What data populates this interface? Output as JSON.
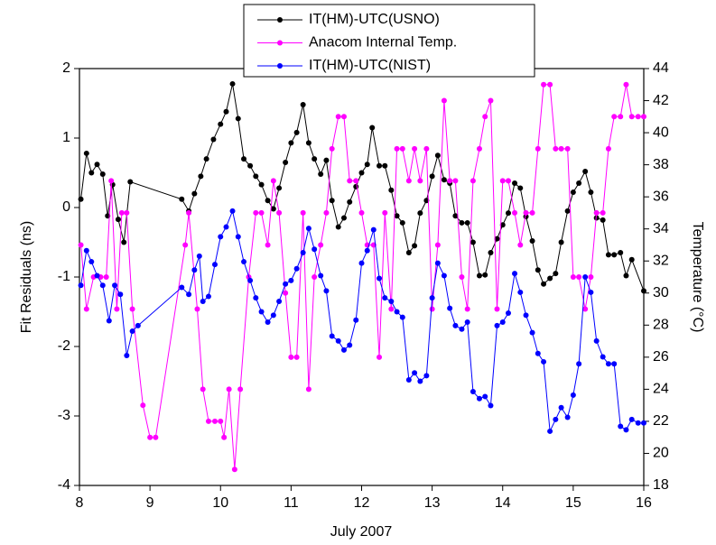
{
  "chart_data": {
    "type": "line",
    "xlabel": "July 2007",
    "ylabel": "Fit Residuals (ns)",
    "y2label": "Temperature (°C)",
    "xlim": [
      8,
      16
    ],
    "xticks": [
      8,
      9,
      10,
      11,
      12,
      13,
      14,
      15,
      16
    ],
    "ylim": [
      -4,
      2
    ],
    "yticks": [
      -4,
      -3,
      -2,
      -1,
      0,
      1,
      2
    ],
    "y2lim": [
      18,
      44
    ],
    "y2ticks": [
      18,
      20,
      22,
      24,
      26,
      28,
      30,
      32,
      34,
      36,
      38,
      40,
      42,
      44
    ],
    "legend": "top",
    "series": [
      {
        "name": "IT(HM)-UTC(USNO)",
        "color": "#000000",
        "x": [
          8.02,
          8.1,
          8.17,
          8.25,
          8.33,
          8.4,
          8.47,
          8.55,
          8.63,
          8.72,
          9.45,
          9.55,
          9.63,
          9.72,
          9.8,
          9.9,
          10.0,
          10.08,
          10.17,
          10.25,
          10.33,
          10.42,
          10.5,
          10.58,
          10.67,
          10.75,
          10.83,
          10.92,
          11.0,
          11.08,
          11.17,
          11.25,
          11.33,
          11.42,
          11.5,
          11.58,
          11.67,
          11.75,
          11.83,
          11.92,
          12.0,
          12.08,
          12.15,
          12.25,
          12.33,
          12.42,
          12.5,
          12.58,
          12.67,
          12.75,
          12.83,
          12.92,
          13.0,
          13.08,
          13.17,
          13.25,
          13.33,
          13.42,
          13.5,
          13.58,
          13.67,
          13.75,
          13.83,
          13.92,
          14.0,
          14.08,
          14.17,
          14.25,
          14.33,
          14.42,
          14.5,
          14.58,
          14.67,
          14.75,
          14.83,
          14.92,
          15.0,
          15.08,
          15.17,
          15.25,
          15.33,
          15.42,
          15.5,
          15.58,
          15.67,
          15.75,
          15.83,
          16.0
        ],
        "values": [
          0.12,
          0.78,
          0.5,
          0.62,
          0.48,
          -0.12,
          0.33,
          -0.17,
          -0.5,
          0.37,
          0.12,
          -0.05,
          0.2,
          0.45,
          0.7,
          0.98,
          1.2,
          1.38,
          1.78,
          1.28,
          0.7,
          0.6,
          0.45,
          0.33,
          0.1,
          -0.02,
          0.28,
          0.65,
          0.93,
          1.08,
          1.48,
          0.93,
          0.7,
          0.48,
          0.68,
          0.1,
          -0.28,
          -0.15,
          0.08,
          0.3,
          0.5,
          0.62,
          1.15,
          0.6,
          0.6,
          0.25,
          -0.12,
          -0.22,
          -0.65,
          -0.55,
          -0.08,
          0.1,
          0.45,
          0.75,
          0.4,
          0.35,
          -0.12,
          -0.22,
          -0.22,
          -0.5,
          -0.98,
          -0.97,
          -0.65,
          -0.45,
          -0.25,
          -0.08,
          0.35,
          0.28,
          -0.13,
          -0.48,
          -0.9,
          -1.1,
          -1.02,
          -0.95,
          -0.5,
          -0.05,
          0.22,
          0.35,
          0.52,
          0.22,
          -0.15,
          -0.18,
          -0.68,
          -0.68,
          -0.65,
          -0.98,
          -0.75,
          -1.2
        ]
      },
      {
        "name": "Anacom Internal Temp.",
        "color": "#ff00ff",
        "axis": "y2",
        "x": [
          8.02,
          8.1,
          8.2,
          8.3,
          8.38,
          8.45,
          8.53,
          8.6,
          8.67,
          8.75,
          8.9,
          9.0,
          9.08,
          9.5,
          9.55,
          9.67,
          9.75,
          9.83,
          9.92,
          10.0,
          10.05,
          10.12,
          10.2,
          10.28,
          10.4,
          10.5,
          10.58,
          10.67,
          10.75,
          10.83,
          10.92,
          11.0,
          11.08,
          11.17,
          11.25,
          11.33,
          11.42,
          11.5,
          11.58,
          11.67,
          11.75,
          11.83,
          11.92,
          12.0,
          12.08,
          12.17,
          12.25,
          12.33,
          12.42,
          12.5,
          12.58,
          12.67,
          12.75,
          12.83,
          12.92,
          13.0,
          13.08,
          13.17,
          13.25,
          13.33,
          13.42,
          13.5,
          13.58,
          13.67,
          13.75,
          13.83,
          13.92,
          14.0,
          14.08,
          14.17,
          14.25,
          14.33,
          14.42,
          14.5,
          14.58,
          14.67,
          14.75,
          14.83,
          14.92,
          15.0,
          15.08,
          15.17,
          15.25,
          15.33,
          15.42,
          15.5,
          15.58,
          15.67,
          15.75,
          15.83,
          15.92,
          16.0
        ],
        "values": [
          33,
          29,
          31,
          31,
          31,
          37,
          29,
          35,
          35,
          29,
          23,
          21,
          21,
          33,
          35,
          29,
          24,
          22,
          22,
          22,
          21,
          24,
          19,
          24,
          31,
          35,
          35,
          33,
          37,
          35,
          30,
          26,
          26,
          35,
          24,
          31,
          33,
          35,
          39,
          41,
          41,
          37,
          37,
          35,
          33,
          33,
          26,
          35,
          29,
          39,
          39,
          37,
          39,
          37,
          39,
          29,
          33,
          42,
          37,
          37,
          31,
          29,
          37,
          39,
          41,
          42,
          29,
          37,
          37,
          35,
          33,
          35,
          35,
          39,
          43,
          43,
          39,
          39,
          39,
          31,
          31,
          29,
          31,
          35,
          35,
          39,
          41,
          41,
          43,
          41,
          41,
          41
        ]
      },
      {
        "name": "IT(HM)-UTC(NIST)",
        "color": "#0000ff",
        "x": [
          8.02,
          8.1,
          8.17,
          8.25,
          8.33,
          8.42,
          8.5,
          8.58,
          8.67,
          8.75,
          8.83,
          9.45,
          9.55,
          9.63,
          9.7,
          9.75,
          9.83,
          9.92,
          10.0,
          10.08,
          10.17,
          10.25,
          10.33,
          10.42,
          10.5,
          10.58,
          10.67,
          10.75,
          10.83,
          10.92,
          11.0,
          11.08,
          11.17,
          11.25,
          11.33,
          11.42,
          11.5,
          11.58,
          11.67,
          11.75,
          11.83,
          11.92,
          12.0,
          12.08,
          12.17,
          12.25,
          12.33,
          12.42,
          12.5,
          12.58,
          12.67,
          12.75,
          12.83,
          12.92,
          13.0,
          13.08,
          13.17,
          13.25,
          13.33,
          13.42,
          13.5,
          13.58,
          13.67,
          13.75,
          13.83,
          13.92,
          14.0,
          14.08,
          14.17,
          14.25,
          14.33,
          14.42,
          14.5,
          14.58,
          14.67,
          14.75,
          14.83,
          14.92,
          15.0,
          15.08,
          15.17,
          15.25,
          15.33,
          15.42,
          15.5,
          15.58,
          15.67,
          15.75,
          15.83,
          15.92,
          16.0
        ],
        "values": [
          -1.12,
          -0.62,
          -0.78,
          -0.98,
          -1.12,
          -1.63,
          -1.12,
          -1.25,
          -2.13,
          -1.78,
          -1.7,
          -1.15,
          -1.25,
          -0.9,
          -0.7,
          -1.35,
          -1.28,
          -0.82,
          -0.42,
          -0.28,
          -0.05,
          -0.42,
          -0.78,
          -1.05,
          -1.3,
          -1.5,
          -1.65,
          -1.55,
          -1.35,
          -1.1,
          -1.05,
          -0.88,
          -0.65,
          -0.3,
          -0.6,
          -0.98,
          -1.2,
          -1.85,
          -1.92,
          -2.05,
          -1.98,
          -1.62,
          -0.8,
          -0.62,
          -0.32,
          -1.02,
          -1.3,
          -1.35,
          -1.5,
          -1.58,
          -2.48,
          -2.38,
          -2.5,
          -2.42,
          -1.3,
          -0.8,
          -0.98,
          -1.45,
          -1.7,
          -1.75,
          -1.65,
          -2.65,
          -2.75,
          -2.72,
          -2.85,
          -1.7,
          -1.65,
          -1.52,
          -0.95,
          -1.22,
          -1.55,
          -1.8,
          -2.1,
          -2.22,
          -3.22,
          -3.05,
          -2.88,
          -3.02,
          -2.7,
          -2.25,
          -1.0,
          -1.22,
          -1.92,
          -2.15,
          -2.25,
          -2.25,
          -3.15,
          -3.2,
          -3.05,
          -3.1,
          -3.1
        ]
      }
    ]
  }
}
